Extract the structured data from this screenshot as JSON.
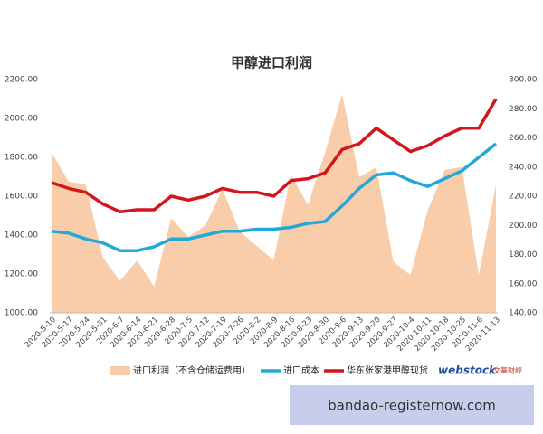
{
  "chart_data": {
    "type": "combo",
    "title": "甲醇进口利润",
    "categories": [
      "2020-5-10",
      "2020-5-17",
      "2020-5-24",
      "2020-5-31",
      "2020-6-7",
      "2020-6-14",
      "2020-6-21",
      "2020-6-28",
      "2020-7-5",
      "2020-7-12",
      "2020-7-19",
      "2020-7-26",
      "2020-8-2",
      "2020-8-9",
      "2020-8-16",
      "2020-8-23",
      "2020-8-30",
      "2020-9-6",
      "2020-9-13",
      "2020-9-20",
      "2020-9-27",
      "2020-10-4",
      "2020-10-11",
      "2020-10-18",
      "2020-10-25",
      "2020-11-6",
      "2020-11-13"
    ],
    "series": [
      {
        "name": "进口利润（不含仓储运费用）",
        "type": "area",
        "axis": "y2",
        "color": "#f9cda9",
        "values": [
          250,
          230,
          228,
          178,
          162,
          176,
          158,
          205,
          192,
          200,
          225,
          196,
          186,
          176,
          235,
          214,
          250,
          290,
          233,
          240,
          175,
          166,
          210,
          238,
          240,
          166,
          228
        ]
      },
      {
        "name": "进口成本",
        "type": "line",
        "color": "#23a9d8",
        "values": [
          1420,
          1410,
          1380,
          1360,
          1320,
          1320,
          1340,
          1380,
          1380,
          1400,
          1420,
          1420,
          1430,
          1430,
          1440,
          1460,
          1470,
          1550,
          1640,
          1710,
          1720,
          1680,
          1650,
          1690,
          1730,
          1800,
          1870
        ]
      },
      {
        "name": "华东张家港甲醇现货",
        "type": "line",
        "color": "#d4161c",
        "values": [
          1670,
          1640,
          1620,
          1560,
          1520,
          1530,
          1530,
          1600,
          1580,
          1600,
          1640,
          1620,
          1620,
          1600,
          1680,
          1690,
          1720,
          1840,
          1870,
          1950,
          1890,
          1830,
          1860,
          1910,
          1950,
          1950,
          2100
        ]
      }
    ],
    "ylim": [
      1000,
      2200
    ],
    "yticks": [
      {
        "value": 1000,
        "label": "1000.00"
      },
      {
        "value": 1200,
        "label": "1200.00"
      },
      {
        "value": 1400,
        "label": "1400.00"
      },
      {
        "value": 1600,
        "label": "1600.00"
      },
      {
        "value": 1800,
        "label": "1800.00"
      },
      {
        "value": 2000,
        "label": "2000.00"
      },
      {
        "value": 2200,
        "label": "2200.00"
      }
    ],
    "y2lim": [
      140,
      300
    ],
    "y2ticks": [
      {
        "value": 140,
        "label": "140.00"
      },
      {
        "value": 160,
        "label": "160.00"
      },
      {
        "value": 180,
        "label": "180.00"
      },
      {
        "value": 200,
        "label": "200.00"
      },
      {
        "value": 220,
        "label": "220.00"
      },
      {
        "value": 240,
        "label": "240.00"
      },
      {
        "value": 260,
        "label": "260.00"
      },
      {
        "value": 280,
        "label": "280.00"
      },
      {
        "value": 300,
        "label": "300.00"
      }
    ],
    "grid": false,
    "logo": "webstock",
    "logo_sub": "文華財經",
    "watermark": "bandao-registernow.com"
  }
}
